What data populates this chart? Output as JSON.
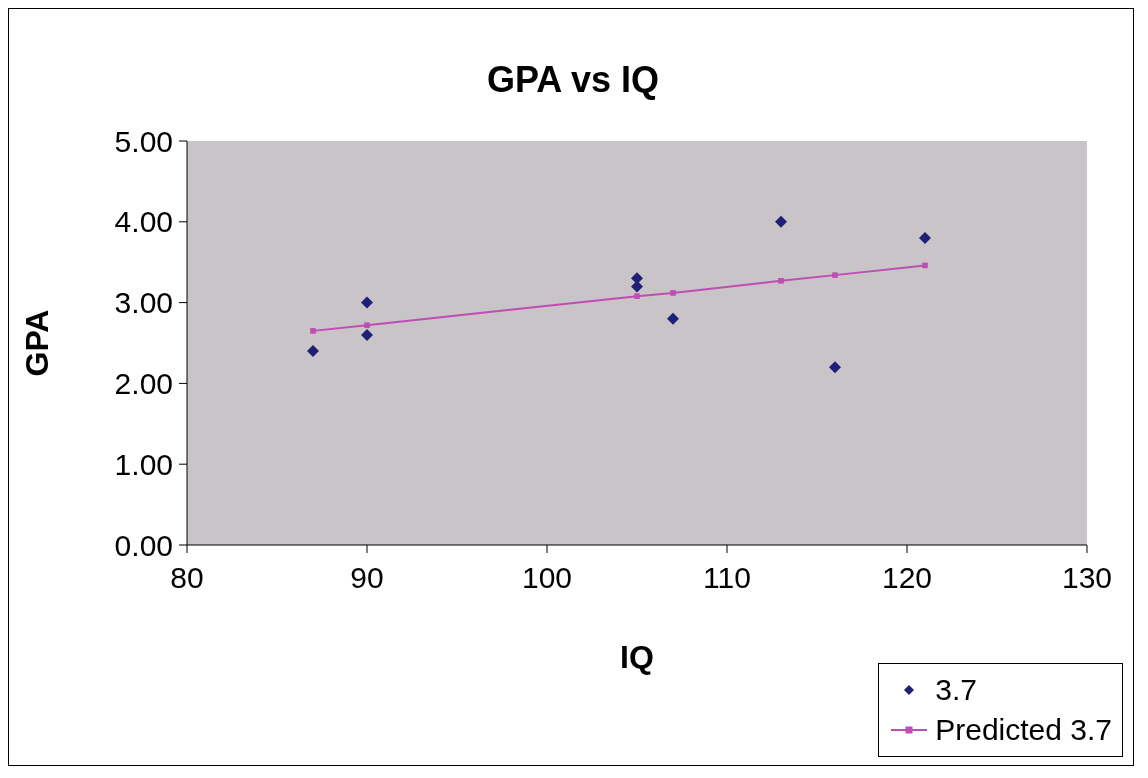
{
  "chart_data": {
    "type": "scatter",
    "title": "GPA vs IQ",
    "xlabel": "IQ",
    "ylabel": "GPA",
    "xlim": [
      80,
      130
    ],
    "xticks": [
      80,
      90,
      100,
      110,
      120,
      130
    ],
    "ylim": [
      0,
      5
    ],
    "yticks": [
      {
        "value": 0,
        "label": "0.00"
      },
      {
        "value": 1,
        "label": "1.00"
      },
      {
        "value": 2,
        "label": "2.00"
      },
      {
        "value": 3,
        "label": "3.00"
      },
      {
        "value": 4,
        "label": "4.00"
      },
      {
        "value": 5,
        "label": "5.00"
      }
    ],
    "grid": false,
    "legend": "bottom right",
    "series": [
      {
        "name": "3.7",
        "type": "scatter",
        "marker": "diamond",
        "color": "#1f1f78",
        "x": [
          87,
          90,
          90,
          105,
          105,
          107,
          113,
          116,
          121
        ],
        "values": [
          2.4,
          3.0,
          2.6,
          3.3,
          3.2,
          2.8,
          4.0,
          2.2,
          3.8
        ]
      },
      {
        "name": "Predicted 3.7",
        "type": "line",
        "marker": "square",
        "line_style": "solid",
        "color": "#c04cb4",
        "x": [
          87,
          90,
          105,
          107,
          113,
          116,
          121
        ],
        "values": [
          2.65,
          2.72,
          3.08,
          3.12,
          3.27,
          3.34,
          3.46
        ]
      }
    ]
  }
}
